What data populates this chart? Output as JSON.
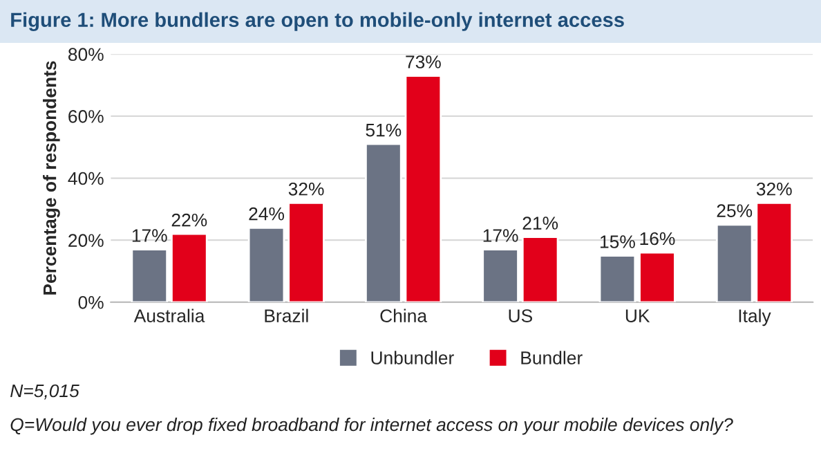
{
  "chart_data": {
    "type": "bar",
    "title": "Figure 1: More bundlers are open to mobile-only internet access",
    "ylabel": "Percentage of respondents",
    "categories": [
      "Australia",
      "Brazil",
      "China",
      "US",
      "UK",
      "Italy"
    ],
    "series": [
      {
        "name": "Unbundler",
        "color": "#6b7384",
        "values": [
          17,
          24,
          51,
          17,
          15,
          25
        ],
        "value_labels": [
          "17%",
          "24%",
          "51%",
          "17%",
          "15%",
          "25%"
        ]
      },
      {
        "name": "Bundler",
        "color": "#e2001a",
        "values": [
          22,
          32,
          73,
          21,
          16,
          32
        ],
        "value_labels": [
          "22%",
          "32%",
          "73%",
          "21%",
          "16%",
          "32%"
        ]
      }
    ],
    "ylim": [
      0,
      80
    ],
    "yticks": [
      {
        "value": 0,
        "label": "0%"
      },
      {
        "value": 20,
        "label": "20%"
      },
      {
        "value": 40,
        "label": "40%"
      },
      {
        "value": 60,
        "label": "60%"
      },
      {
        "value": 80,
        "label": "80%"
      }
    ],
    "grid": "y",
    "legend": "bottom",
    "annotations": [
      "N=5,015",
      "Q=Would you ever drop fixed broadband for internet access on your mobile devices only?"
    ]
  }
}
